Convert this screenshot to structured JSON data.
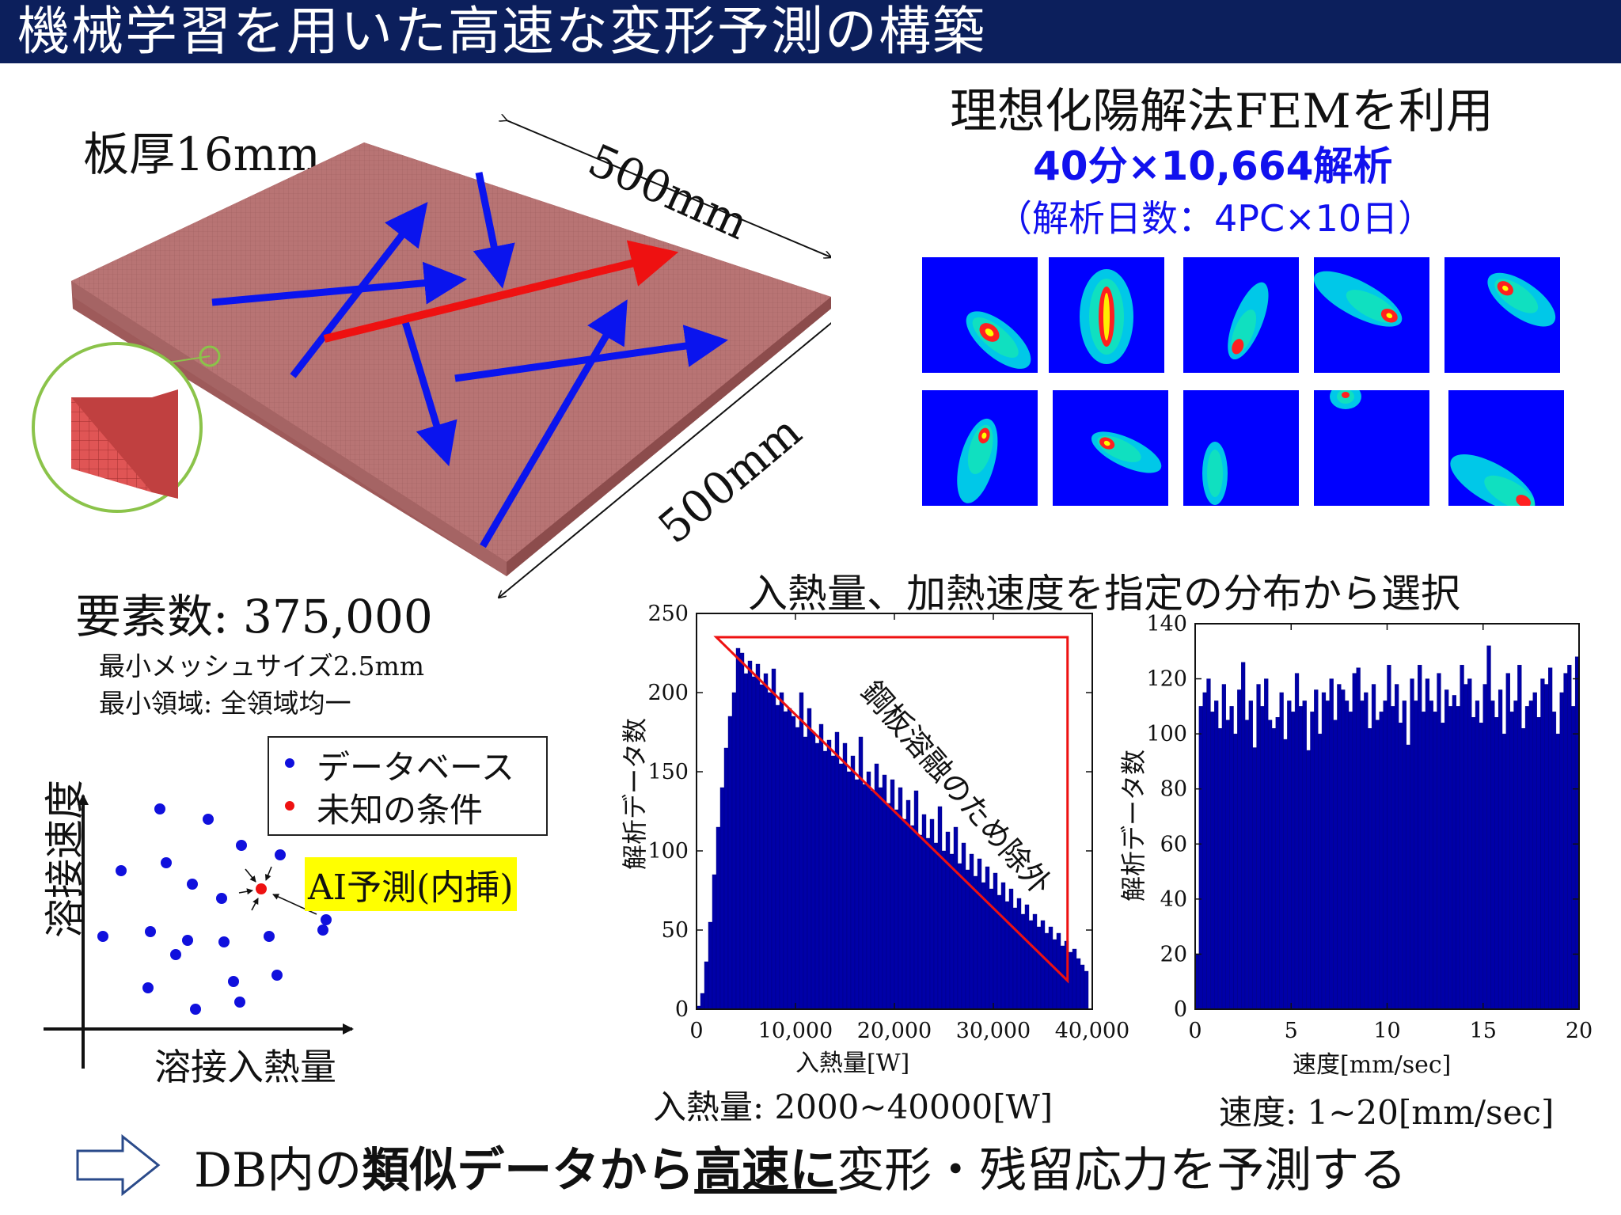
{
  "header": {
    "title": "機械学習を用いた高速な変形予測の構築"
  },
  "plate": {
    "thickness_label": "板厚16mm",
    "dim_top": "500mm",
    "dim_right": "500mm",
    "element_count": "要素数: 375,000",
    "min_mesh": "最小メッシュサイズ2.5mm",
    "min_region": "最小領域: 全領域均一",
    "plate_color": "#b97878",
    "arrow_blue": "#0a14ee",
    "arrow_red": "#ee1111"
  },
  "fem": {
    "title": "理想化陽解法FEMを利用",
    "count": "40分×10,664解析",
    "days": "（解析日数：4PC×10日）",
    "background_color": "#0000ff"
  },
  "scatter": {
    "y_label": "溶接速度",
    "x_label": "溶接入熱量",
    "legend_db": "データベース",
    "legend_unknown": "未知の条件",
    "ai_label": "AI予測(内挿)",
    "db_color": "#1010dd",
    "unknown_color": "#ee1111"
  },
  "section": {
    "selection_title": "入熱量、加熱速度を指定の分布から選択"
  },
  "hist_heat": {
    "ylabel": "解析データ数",
    "xlabel": "入熱量[W]",
    "range_label": "入熱量: 2000~40000[W]",
    "exclusion_label": "鋼板溶融のため除外",
    "y_ticks": [
      "0",
      "50",
      "100",
      "150",
      "200",
      "250"
    ],
    "x_ticks": [
      "0",
      "10,000",
      "20,000",
      "30,000",
      "40,000"
    ]
  },
  "hist_speed": {
    "ylabel": "解析データ数",
    "xlabel": "速度[mm/sec]",
    "range_label": "速度: 1~20[mm/sec]",
    "y_ticks": [
      "0",
      "20",
      "40",
      "60",
      "80",
      "100",
      "120",
      "140"
    ],
    "x_ticks": [
      "0",
      "5",
      "10",
      "15",
      "20"
    ]
  },
  "chart_data": [
    {
      "type": "bar",
      "xlabel": "入熱量[W]",
      "ylabel": "解析データ数",
      "xlim": [
        0,
        40000
      ],
      "ylim": [
        0,
        250
      ],
      "bin_width": 400,
      "x": [
        400,
        800,
        1200,
        1600,
        2000,
        2400,
        2800,
        3200,
        3600,
        4000,
        4400,
        4800,
        5200,
        5600,
        6000,
        6400,
        6800,
        7200,
        7600,
        8000,
        8400,
        8800,
        9200,
        9600,
        10000,
        10400,
        10800,
        11200,
        11600,
        12000,
        12400,
        12800,
        13200,
        13600,
        14000,
        14400,
        14800,
        15200,
        15600,
        16000,
        16400,
        16800,
        17200,
        17600,
        18000,
        18400,
        18800,
        19200,
        19600,
        20000,
        20400,
        20800,
        21200,
        21600,
        22000,
        22400,
        22800,
        23200,
        23600,
        24000,
        24400,
        24800,
        25200,
        25600,
        26000,
        26400,
        26800,
        27200,
        27600,
        28000,
        28400,
        28800,
        29200,
        29600,
        30000,
        30400,
        30800,
        31200,
        31600,
        32000,
        32400,
        32800,
        33200,
        33600,
        34000,
        34400,
        34800,
        35200,
        35600,
        36000,
        36400,
        36800,
        37200,
        37600,
        38000,
        38400,
        38800,
        39200,
        39600
      ],
      "values": [
        2,
        10,
        30,
        55,
        85,
        115,
        140,
        165,
        185,
        200,
        228,
        225,
        212,
        220,
        210,
        218,
        205,
        212,
        200,
        215,
        192,
        200,
        188,
        190,
        185,
        178,
        200,
        172,
        190,
        175,
        168,
        180,
        163,
        170,
        160,
        175,
        155,
        168,
        150,
        160,
        145,
        172,
        142,
        150,
        138,
        155,
        140,
        148,
        130,
        145,
        126,
        140,
        120,
        132,
        116,
        138,
        110,
        123,
        108,
        120,
        105,
        128,
        100,
        112,
        98,
        115,
        92,
        105,
        88,
        98,
        84,
        95,
        80,
        90,
        76,
        86,
        72,
        80,
        68,
        76,
        64,
        70,
        60,
        66,
        56,
        60,
        52,
        56,
        48,
        52,
        44,
        48,
        40,
        43,
        36,
        38,
        32,
        28,
        24
      ],
      "annotation": "鋼板溶融のため除外"
    },
    {
      "type": "bar",
      "xlabel": "速度[mm/sec]",
      "ylabel": "解析データ数",
      "xlim": [
        0,
        20
      ],
      "ylim": [
        0,
        140
      ],
      "bin_width": 0.2,
      "x": [
        0.2,
        0.4,
        0.6,
        0.8,
        1.0,
        1.2,
        1.4,
        1.6,
        1.8,
        2.0,
        2.2,
        2.4,
        2.6,
        2.8,
        3.0,
        3.2,
        3.4,
        3.6,
        3.8,
        4.0,
        4.2,
        4.4,
        4.6,
        4.8,
        5.0,
        5.2,
        5.4,
        5.6,
        5.8,
        6.0,
        6.2,
        6.4,
        6.6,
        6.8,
        7.0,
        7.2,
        7.4,
        7.6,
        7.8,
        8.0,
        8.2,
        8.4,
        8.6,
        8.8,
        9.0,
        9.2,
        9.4,
        9.6,
        9.8,
        10.0,
        10.2,
        10.4,
        10.6,
        10.8,
        11.0,
        11.2,
        11.4,
        11.6,
        11.8,
        12.0,
        12.2,
        12.4,
        12.6,
        12.8,
        13.0,
        13.2,
        13.4,
        13.6,
        13.8,
        14.0,
        14.2,
        14.4,
        14.6,
        14.8,
        15.0,
        15.2,
        15.4,
        15.6,
        15.8,
        16.0,
        16.2,
        16.4,
        16.6,
        16.8,
        17.0,
        17.2,
        17.4,
        17.6,
        17.8,
        18.0,
        18.2,
        18.4,
        18.6,
        18.8,
        19.0,
        19.2,
        19.4,
        19.6,
        19.8,
        20.0
      ],
      "values": [
        20,
        110,
        115,
        120,
        108,
        112,
        102,
        118,
        105,
        110,
        100,
        116,
        126,
        105,
        112,
        95,
        118,
        110,
        120,
        105,
        102,
        106,
        115,
        98,
        112,
        108,
        122,
        110,
        112,
        94,
        108,
        116,
        100,
        115,
        112,
        120,
        105,
        118,
        116,
        112,
        108,
        122,
        124,
        112,
        115,
        102,
        118,
        105,
        108,
        112,
        125,
        110,
        118,
        104,
        112,
        96,
        120,
        112,
        125,
        108,
        120,
        112,
        108,
        122,
        104,
        116,
        110,
        114,
        110,
        125,
        118,
        120,
        106,
        112,
        104,
        118,
        132,
        112,
        106,
        116,
        100,
        122,
        108,
        112,
        125,
        102,
        110,
        112,
        115,
        106,
        120,
        118,
        124,
        108,
        100,
        115,
        122,
        125,
        110,
        128
      ]
    }
  ]
}
